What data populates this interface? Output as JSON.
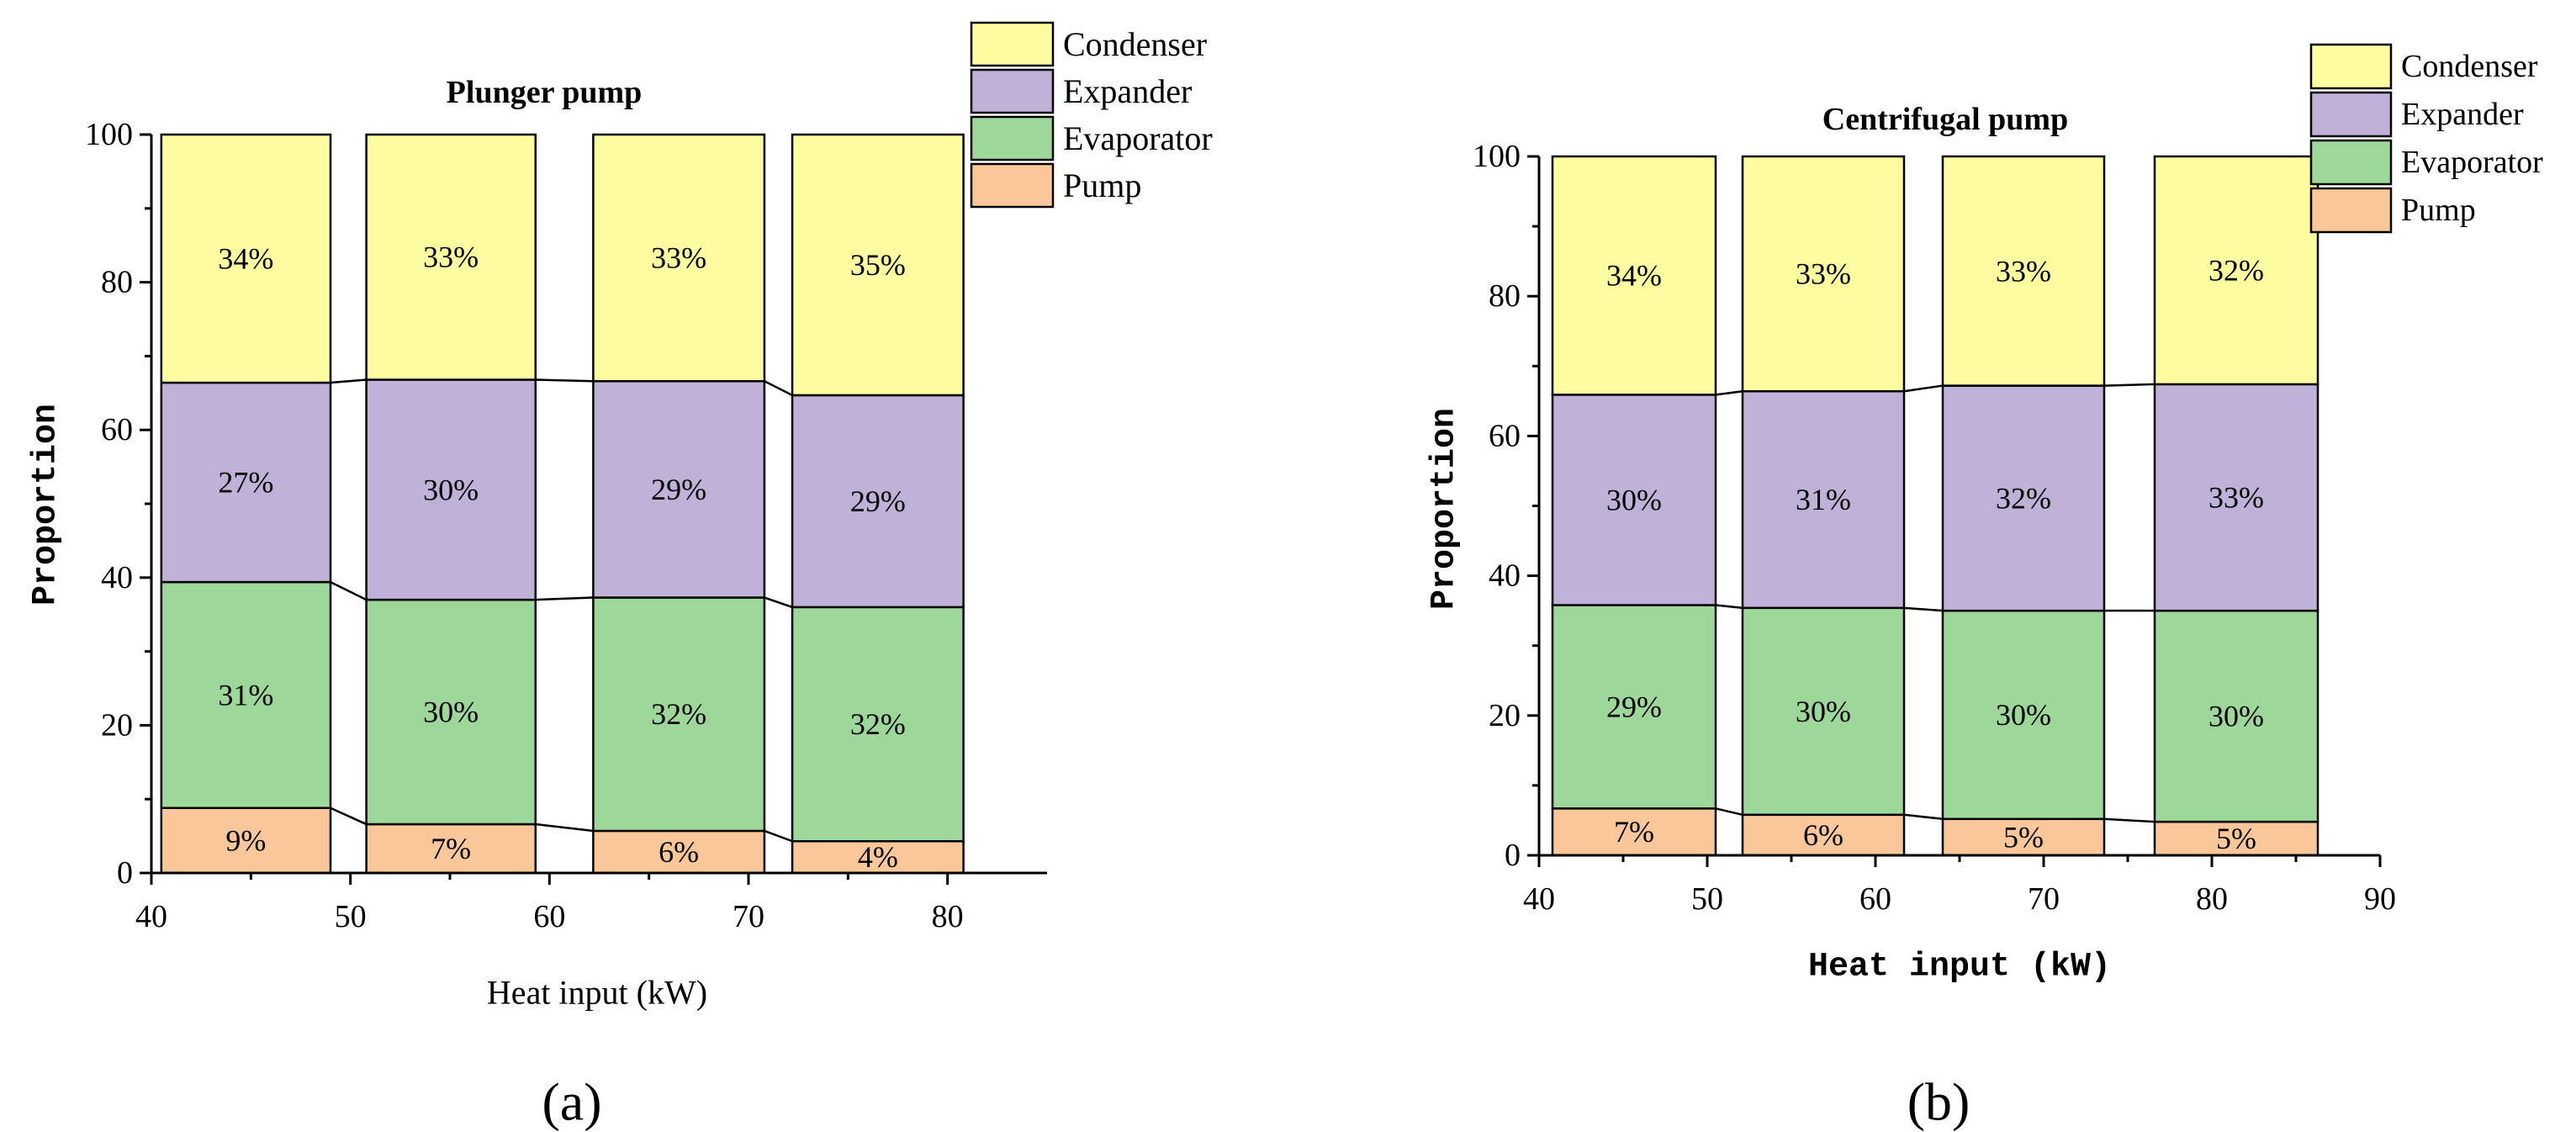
{
  "chart_data": [
    {
      "type": "bar",
      "stacked": true,
      "title": "Plunger pump",
      "xlabel": "Heat input (kW)",
      "ylabel": "Proportion",
      "panel_label": "(a)",
      "xlim": [
        40,
        85
      ],
      "ylim": [
        0,
        100
      ],
      "xticks": [
        40,
        50,
        60,
        70,
        80
      ],
      "yticks": [
        0,
        20,
        40,
        60,
        80,
        100
      ],
      "bar_x_ranges": [
        [
          40.5,
          49
        ],
        [
          50.8,
          59.3
        ],
        [
          62.2,
          70.8
        ],
        [
          72.2,
          80.8
        ]
      ],
      "legend_position": "top-right",
      "series": [
        {
          "name": "Pump",
          "color": "#F9C79A",
          "bottoms": [
            0,
            0,
            0,
            0
          ],
          "tops": [
            8.8,
            6.6,
            5.7,
            4.3
          ],
          "labels": [
            "9%",
            "7%",
            "6%",
            "4%"
          ]
        },
        {
          "name": "Evaporator",
          "color": "#9ED79A",
          "bottoms": [
            8.8,
            6.6,
            5.7,
            4.3
          ],
          "tops": [
            39.4,
            37.0,
            37.3,
            36.0
          ],
          "labels": [
            "31%",
            "30%",
            "32%",
            "32%"
          ]
        },
        {
          "name": "Expander",
          "color": "#C0B1D9",
          "bottoms": [
            39.4,
            37.0,
            37.3,
            36.0
          ],
          "tops": [
            66.4,
            66.8,
            66.6,
            64.7
          ],
          "labels": [
            "27%",
            "30%",
            "29%",
            "29%"
          ]
        },
        {
          "name": "Condenser",
          "color": "#FDFCA0",
          "bottoms": [
            66.4,
            66.8,
            66.6,
            64.7
          ],
          "tops": [
            100,
            100,
            100,
            100
          ],
          "labels": [
            "34%",
            "33%",
            "33%",
            "35%"
          ]
        }
      ]
    },
    {
      "type": "bar",
      "stacked": true,
      "title": "Centrifugal pump",
      "xlabel": "Heat input (kW)",
      "ylabel": "Proportion",
      "panel_label": "(b)",
      "xlim": [
        40,
        90
      ],
      "ylim": [
        0,
        100
      ],
      "xticks": [
        40,
        50,
        60,
        70,
        80,
        90
      ],
      "yticks": [
        0,
        20,
        40,
        60,
        80,
        100
      ],
      "bar_x_ranges": [
        [
          40.8,
          50.5
        ],
        [
          52.1,
          61.7
        ],
        [
          64.0,
          73.6
        ],
        [
          76.6,
          86.3
        ]
      ],
      "legend_position": "top-right",
      "series": [
        {
          "name": "Pump",
          "color": "#F9C79A",
          "bottoms": [
            0,
            0,
            0,
            0
          ],
          "tops": [
            6.7,
            5.8,
            5.2,
            4.8
          ],
          "labels": [
            "7%",
            "6%",
            "5%",
            "5%"
          ]
        },
        {
          "name": "Evaporator",
          "color": "#9ED79A",
          "bottoms": [
            6.7,
            5.8,
            5.2,
            4.8
          ],
          "tops": [
            35.8,
            35.4,
            35.0,
            35.0
          ],
          "labels": [
            "29%",
            "30%",
            "30%",
            "30%"
          ]
        },
        {
          "name": "Expander",
          "color": "#C0B1D9",
          "bottoms": [
            35.8,
            35.4,
            35.0,
            35.0
          ],
          "tops": [
            65.9,
            66.4,
            67.2,
            67.4
          ],
          "labels": [
            "30%",
            "31%",
            "32%",
            "33%"
          ]
        },
        {
          "name": "Condenser",
          "color": "#FDFCA0",
          "bottoms": [
            65.9,
            66.4,
            67.2,
            67.4
          ],
          "tops": [
            100,
            100,
            100,
            100
          ],
          "labels": [
            "34%",
            "33%",
            "33%",
            "32%"
          ]
        }
      ]
    }
  ]
}
